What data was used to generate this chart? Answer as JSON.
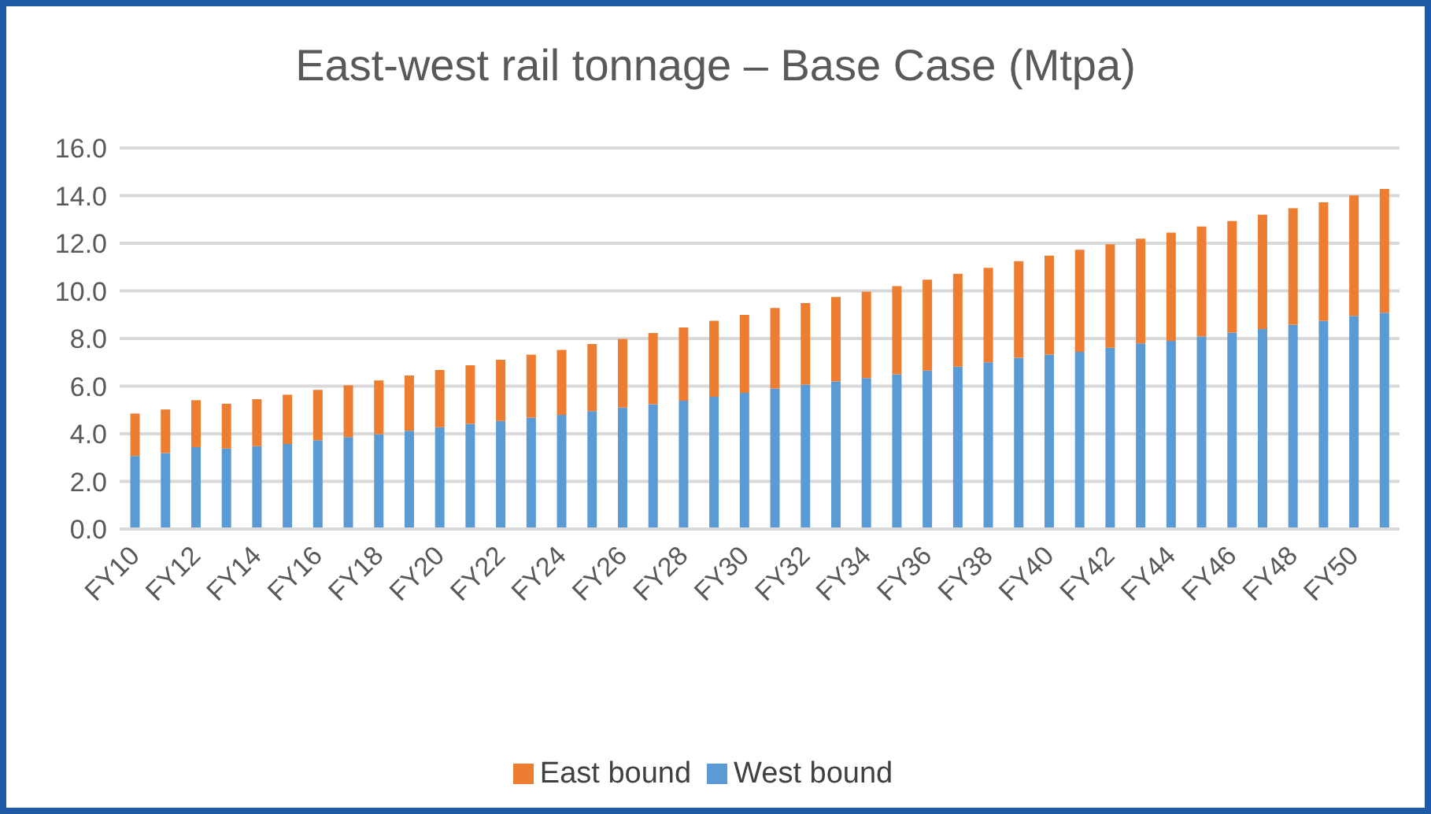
{
  "chart_data": {
    "type": "bar",
    "title": "East-west rail tonnage – Base Case (Mtpa)",
    "stacked": true,
    "grid": "y",
    "legend": "bottom",
    "categories": [
      "FY10",
      null,
      "FY12",
      null,
      "FY14",
      null,
      "FY16",
      null,
      "FY18",
      null,
      "FY20",
      null,
      "FY22",
      null,
      "FY24",
      null,
      "FY26",
      null,
      "FY28",
      null,
      "FY30",
      null,
      "FY32",
      null,
      "FY34",
      null,
      "FY36",
      null,
      "FY38",
      null,
      "FY40",
      null,
      "FY42",
      null,
      "FY44",
      null,
      "FY46",
      null,
      "FY48",
      null,
      "FY50",
      null
    ],
    "ylim": [
      0,
      16
    ],
    "yticks": [
      {
        "value": 0,
        "label": "0.0"
      },
      {
        "value": 2,
        "label": "2.0"
      },
      {
        "value": 4,
        "label": "4.0"
      },
      {
        "value": 6,
        "label": "6.0"
      },
      {
        "value": 8,
        "label": "8.0"
      },
      {
        "value": 10,
        "label": "10.0"
      },
      {
        "value": 12,
        "label": "12.0"
      },
      {
        "value": 14,
        "label": "14.0"
      },
      {
        "value": 16,
        "label": "16.0"
      }
    ],
    "series": [
      {
        "name": "West bound",
        "color": "#5b9bd5",
        "values": [
          3.07,
          3.19,
          3.44,
          3.38,
          3.48,
          3.57,
          3.73,
          3.86,
          3.98,
          4.12,
          4.27,
          4.41,
          4.54,
          4.68,
          4.79,
          4.95,
          5.1,
          5.24,
          5.39,
          5.55,
          5.72,
          5.9,
          6.07,
          6.2,
          6.34,
          6.5,
          6.65,
          6.82,
          7.0,
          7.19,
          7.32,
          7.44,
          7.61,
          7.79,
          7.9,
          8.08,
          8.25,
          8.4,
          8.58,
          8.74,
          8.95,
          9.08
        ]
      },
      {
        "name": "East bound",
        "color": "#ed7d31",
        "values": [
          1.78,
          1.83,
          1.97,
          1.88,
          1.97,
          2.07,
          2.11,
          2.17,
          2.26,
          2.33,
          2.41,
          2.47,
          2.57,
          2.64,
          2.73,
          2.82,
          2.88,
          2.99,
          3.07,
          3.19,
          3.27,
          3.38,
          3.42,
          3.54,
          3.63,
          3.7,
          3.82,
          3.9,
          3.97,
          4.06,
          4.16,
          4.29,
          4.35,
          4.4,
          4.55,
          4.62,
          4.68,
          4.8,
          4.89,
          4.98,
          5.06,
          5.2
        ]
      }
    ]
  }
}
